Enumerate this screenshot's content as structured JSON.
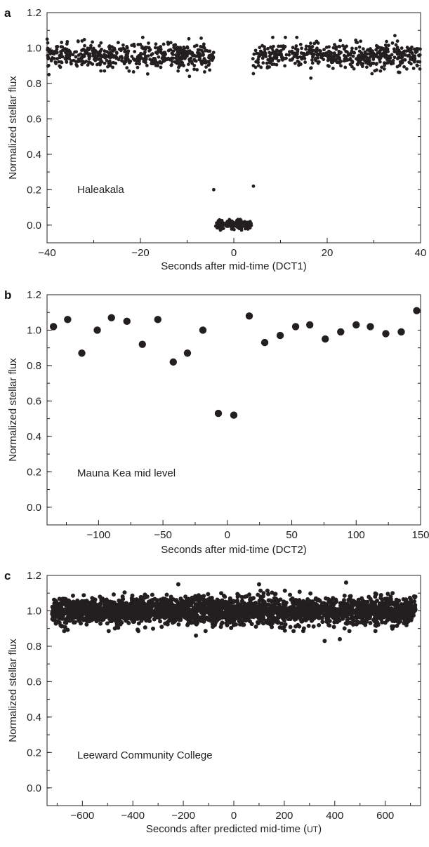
{
  "chart_data": [
    {
      "type": "scatter",
      "panel": "a",
      "xlabel": "Seconds after mid-time (DCT1)",
      "ylabel": "Normalized stellar flux",
      "annotation": "Haleakala",
      "xlim": [
        -40,
        40
      ],
      "ylim": [
        -0.1,
        1.2
      ],
      "xticks": [
        -40,
        -20,
        0,
        20,
        40
      ],
      "xtick_labels": [
        "−40",
        "−20",
        "0",
        "20",
        "40"
      ],
      "yticks": [
        0.0,
        0.2,
        0.4,
        0.6,
        0.8,
        1.0,
        1.2
      ],
      "ytick_labels": [
        "0.0",
        "0.2",
        "0.4",
        "0.6",
        "0.8",
        "1.0",
        "1.2"
      ],
      "marker": "small-dot",
      "color": "#231f20",
      "series": [
        {
          "segments": [
            {
              "x_range": [
                -40,
                -4.3
              ],
              "mean": 0.955,
              "spread": 0.035,
              "count": 520
            },
            {
              "x_range": [
                3.9,
                4.4
              ],
              "mean": 0.955,
              "spread": 0.035,
              "count": 4
            },
            {
              "x_range": [
                4.6,
                40
              ],
              "mean": 0.955,
              "spread": 0.035,
              "count": 520
            },
            {
              "x_range": [
                -3.9,
                3.8
              ],
              "mean": 0.0,
              "spread": 0.014,
              "count": 150
            }
          ],
          "points": [
            {
              "x": -4.3,
              "y": 0.2
            },
            {
              "x": 4.2,
              "y": 0.22
            },
            {
              "x": -9.5,
              "y": 0.84
            },
            {
              "x": 16.5,
              "y": 0.83
            },
            {
              "x": 34.5,
              "y": 1.07
            },
            {
              "x": 13.5,
              "y": 1.06
            },
            {
              "x": -19.5,
              "y": 1.06
            },
            {
              "x": -32.5,
              "y": 1.04
            }
          ]
        }
      ]
    },
    {
      "type": "scatter",
      "panel": "b",
      "xlabel": "Seconds after mid-time (DCT2)",
      "ylabel": "Normalized stellar flux",
      "annotation": "Mauna Kea mid level",
      "xlim": [
        -140,
        150
      ],
      "ylim": [
        -0.1,
        1.2
      ],
      "xticks": [
        -100,
        -50,
        0,
        50,
        100,
        150
      ],
      "xtick_labels": [
        "−100",
        "−50",
        "0",
        "50",
        "100",
        "150"
      ],
      "yticks": [
        0.0,
        0.2,
        0.4,
        0.6,
        0.8,
        1.0,
        1.2
      ],
      "ytick_labels": [
        "0.0",
        "0.2",
        "0.4",
        "0.6",
        "0.8",
        "1.0",
        "1.2"
      ],
      "marker": "large-dot",
      "color": "#231f20",
      "series": [
        {
          "points": [
            {
              "x": -135,
              "y": 1.02
            },
            {
              "x": -124,
              "y": 1.06
            },
            {
              "x": -113,
              "y": 0.87
            },
            {
              "x": -101,
              "y": 1.0
            },
            {
              "x": -90,
              "y": 1.07
            },
            {
              "x": -78,
              "y": 1.05
            },
            {
              "x": -66,
              "y": 0.92
            },
            {
              "x": -54,
              "y": 1.06
            },
            {
              "x": -42,
              "y": 0.82
            },
            {
              "x": -31,
              "y": 0.87
            },
            {
              "x": -19,
              "y": 1.0
            },
            {
              "x": -7,
              "y": 0.53
            },
            {
              "x": 5,
              "y": 0.52
            },
            {
              "x": 17,
              "y": 1.08
            },
            {
              "x": 29,
              "y": 0.93
            },
            {
              "x": 41,
              "y": 0.97
            },
            {
              "x": 53,
              "y": 1.02
            },
            {
              "x": 64,
              "y": 1.03
            },
            {
              "x": 76,
              "y": 0.95
            },
            {
              "x": 88,
              "y": 0.99
            },
            {
              "x": 100,
              "y": 1.03
            },
            {
              "x": 111,
              "y": 1.02
            },
            {
              "x": 123,
              "y": 0.98
            },
            {
              "x": 135,
              "y": 0.99
            },
            {
              "x": 147,
              "y": 1.11
            }
          ]
        }
      ]
    },
    {
      "type": "scatter",
      "panel": "c",
      "xlabel_main": "Seconds after predicted mid-time (",
      "xlabel_unit": "UT",
      "xlabel_end": ")",
      "ylabel": "Normalized stellar flux",
      "annotation": "Leeward Community College",
      "xlim": [
        -740,
        740
      ],
      "ylim": [
        -0.1,
        1.2
      ],
      "xticks": [
        -600,
        -400,
        -200,
        0,
        200,
        400,
        600
      ],
      "xtick_labels": [
        "−600",
        "−400",
        "−200",
        "0",
        "200",
        "400",
        "600"
      ],
      "yticks": [
        0.0,
        0.2,
        0.4,
        0.6,
        0.8,
        1.0,
        1.2
      ],
      "ytick_labels": [
        "0.0",
        "0.2",
        "0.4",
        "0.6",
        "0.8",
        "1.0",
        "1.2"
      ],
      "marker": "medium-dot",
      "color": "#231f20",
      "series": [
        {
          "segments": [
            {
              "x_range": [
                -720,
                720
              ],
              "mean": 1.0,
              "spread": 0.038,
              "count": 2600
            }
          ],
          "points": [
            {
              "x": 445,
              "y": 1.16
            },
            {
              "x": 100,
              "y": 1.15
            },
            {
              "x": -220,
              "y": 1.15
            },
            {
              "x": 360,
              "y": 0.83
            },
            {
              "x": 420,
              "y": 0.84
            },
            {
              "x": -150,
              "y": 0.86
            }
          ]
        }
      ]
    }
  ]
}
